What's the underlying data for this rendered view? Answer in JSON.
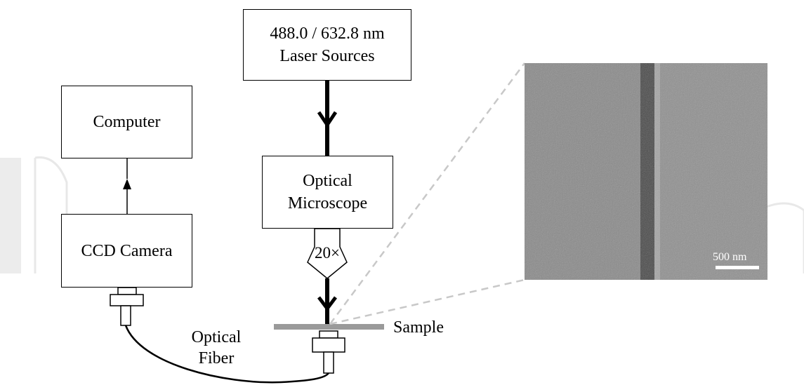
{
  "laser_box": {
    "line1": "488.0 / 632.8 nm",
    "line2": "Laser Sources"
  },
  "computer_box": {
    "label": "Computer"
  },
  "ccd_box": {
    "label": "CCD Camera"
  },
  "microscope_box": {
    "line1": "Optical",
    "line2": "Microscope"
  },
  "objective": {
    "label": "20×"
  },
  "sample": {
    "label": "Sample"
  },
  "fiber": {
    "line1": "Optical",
    "line2": "Fiber"
  },
  "sem_image": {
    "scale_label": "500 nm"
  },
  "colors": {
    "stroke": "#000000",
    "dashed_line": "#c8c8c8",
    "sample_plate": "#9a9a9a",
    "watermark": "#e6e6e6"
  }
}
